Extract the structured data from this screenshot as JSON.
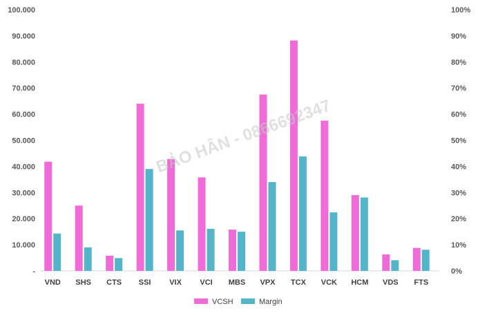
{
  "chart_data": {
    "type": "bar",
    "categories": [
      "VND",
      "SHS",
      "CTS",
      "SSI",
      "VIX",
      "VCI",
      "MBS",
      "VPX",
      "TCX",
      "VCK",
      "HCM",
      "VDS",
      "FTS"
    ],
    "series": [
      {
        "name": "VCSH",
        "axis": "left",
        "color": "#ee6bd8",
        "values": [
          41800,
          25000,
          5800,
          64000,
          42800,
          35800,
          15800,
          67500,
          88200,
          57500,
          29000,
          6300,
          8800
        ]
      },
      {
        "name": "Margin",
        "axis": "right",
        "color": "#54b5c9",
        "values": [
          14.3,
          9.0,
          4.9,
          39.0,
          15.5,
          16.1,
          15.0,
          34.0,
          43.8,
          22.4,
          28.1,
          4.1,
          8.1
        ]
      }
    ],
    "ylim_left": [
      0,
      100000
    ],
    "yticks_left": [
      "-",
      "10.000",
      "20.000",
      "30.000",
      "40.000",
      "50.000",
      "60.000",
      "70.000",
      "80.000",
      "90.000",
      "100.000"
    ],
    "ylim_right": [
      0,
      100
    ],
    "yticks_right": [
      "0%",
      "10%",
      "20%",
      "30%",
      "40%",
      "50%",
      "60%",
      "70%",
      "80%",
      "90%",
      "100%"
    ],
    "grid": false,
    "legend": "bottom-center",
    "watermark": "BẢO HÂN - 0866692347"
  }
}
